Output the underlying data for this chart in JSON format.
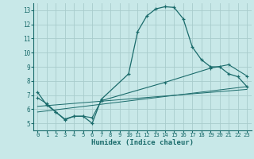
{
  "xlabel": "Humidex (Indice chaleur)",
  "background_color": "#c8e8e8",
  "line_color": "#1a6b6b",
  "grid_color": "#a8cccc",
  "xlim": [
    -0.5,
    23.5
  ],
  "ylim": [
    4.5,
    13.5
  ],
  "xticks": [
    0,
    1,
    2,
    3,
    4,
    5,
    6,
    7,
    8,
    9,
    10,
    11,
    12,
    13,
    14,
    15,
    16,
    17,
    18,
    19,
    20,
    21,
    22,
    23
  ],
  "yticks": [
    5,
    6,
    7,
    8,
    9,
    10,
    11,
    12,
    13
  ],
  "curve1_x": [
    0,
    1,
    2,
    3,
    4,
    5,
    6,
    7,
    10,
    11,
    12,
    13,
    14,
    15,
    16,
    17,
    18,
    19,
    20,
    21,
    22,
    23
  ],
  "curve1_y": [
    7.2,
    6.3,
    5.8,
    5.3,
    5.5,
    5.5,
    5.0,
    6.7,
    8.5,
    11.5,
    12.6,
    13.1,
    13.25,
    13.2,
    12.4,
    10.4,
    9.5,
    9.0,
    9.0,
    8.5,
    8.3,
    7.6
  ],
  "curve2_x": [
    0,
    1,
    2,
    3,
    4,
    5,
    6,
    7,
    14,
    19,
    21,
    23
  ],
  "curve2_y": [
    6.8,
    6.4,
    5.8,
    5.25,
    5.5,
    5.5,
    5.4,
    6.6,
    7.9,
    8.9,
    9.15,
    8.35
  ],
  "curve3_x": [
    0,
    23
  ],
  "curve3_y": [
    5.8,
    7.6
  ],
  "curve4_x": [
    0,
    23
  ],
  "curve4_y": [
    6.2,
    7.4
  ]
}
